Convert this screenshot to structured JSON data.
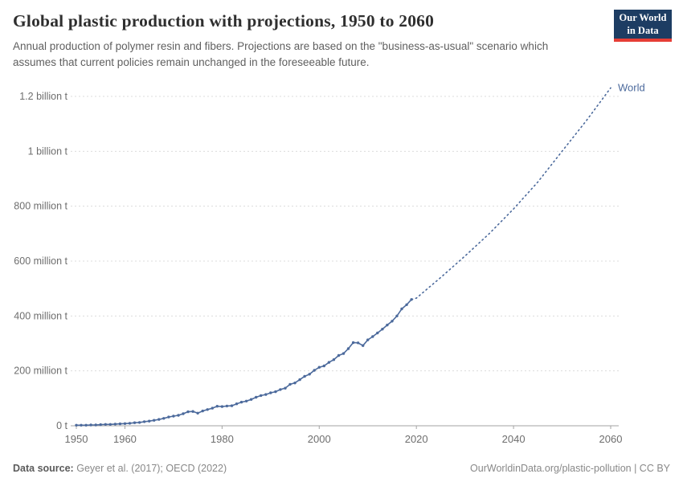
{
  "header": {
    "title": "Global plastic production with projections, 1950 to 2060",
    "subtitle": "Annual production of polymer resin and fibers. Projections are based on the \"business-as-usual\" scenario which assumes that current policies remain unchanged in the foreseeable future.",
    "logo": {
      "line1": "Our World",
      "line2": "in Data",
      "bg_color": "#1d3d63",
      "accent_color": "#e63e36"
    }
  },
  "chart_data": {
    "type": "line",
    "title": "Global plastic production with projections, 1950 to 2060",
    "unit": "million tonnes",
    "color": "#4c6a9c",
    "grid": true,
    "xlim": [
      1950,
      2060
    ],
    "ylim": [
      0,
      1200
    ],
    "x_ticks": [
      1950,
      1960,
      1980,
      2000,
      2020,
      2040,
      2060
    ],
    "y_ticks": [
      0,
      200,
      400,
      600,
      800,
      1000,
      1200
    ],
    "y_tick_labels": [
      "0 t",
      "200 million t",
      "400 million t",
      "600 million t",
      "800 million t",
      "1 billion t",
      "1.2 billion t"
    ],
    "end_label": "World",
    "series": [
      {
        "name": "World (historic)",
        "style": "solid",
        "markers": true,
        "x": [
          1950,
          1951,
          1952,
          1953,
          1954,
          1955,
          1956,
          1957,
          1958,
          1959,
          1960,
          1961,
          1962,
          1963,
          1964,
          1965,
          1966,
          1967,
          1968,
          1969,
          1970,
          1971,
          1972,
          1973,
          1974,
          1975,
          1976,
          1977,
          1978,
          1979,
          1980,
          1981,
          1982,
          1983,
          1984,
          1985,
          1986,
          1987,
          1988,
          1989,
          1990,
          1991,
          1992,
          1993,
          1994,
          1995,
          1996,
          1997,
          1998,
          1999,
          2000,
          2001,
          2002,
          2003,
          2004,
          2005,
          2006,
          2007,
          2008,
          2009,
          2010,
          2011,
          2012,
          2013,
          2014,
          2015,
          2016,
          2017,
          2018,
          2019
        ],
        "values": [
          2,
          2,
          2,
          3,
          3,
          4,
          5,
          5,
          6,
          7,
          8,
          9,
          11,
          12,
          15,
          17,
          20,
          23,
          27,
          32,
          35,
          38,
          44,
          51,
          52,
          46,
          54,
          59,
          64,
          71,
          70,
          72,
          73,
          80,
          86,
          90,
          96,
          104,
          110,
          114,
          120,
          124,
          132,
          137,
          151,
          156,
          168,
          180,
          188,
          202,
          213,
          218,
          231,
          241,
          256,
          263,
          281,
          303,
          302,
          292,
          313,
          325,
          338,
          352,
          367,
          381,
          400,
          426,
          441,
          460
        ]
      },
      {
        "name": "World (projection, business-as-usual)",
        "style": "dotted",
        "markers": false,
        "x": [
          2019,
          2020,
          2025,
          2030,
          2035,
          2040,
          2045,
          2050,
          2055,
          2060
        ],
        "values": [
          460,
          465,
          540,
          618,
          700,
          790,
          888,
          1000,
          1112,
          1231
        ]
      }
    ]
  },
  "footer": {
    "source_label": "Data source:",
    "source_text": "Geyer et al. (2017); OECD (2022)",
    "right_text": "OurWorldinData.org/plastic-pollution | CC BY"
  }
}
